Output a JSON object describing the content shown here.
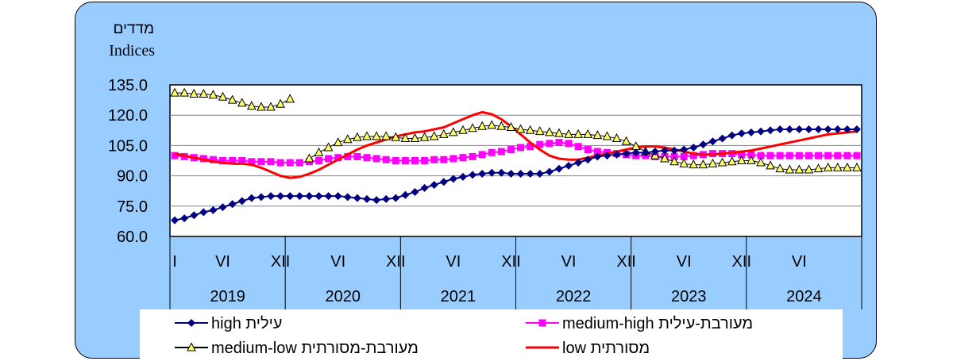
{
  "chart_data": {
    "type": "line",
    "ylabel_he": "מדדים",
    "ylabel_en": "Indices",
    "ylim": [
      60,
      135
    ],
    "yticks": [
      "60.0",
      "75.0",
      "90.0",
      "105.0",
      "120.0",
      "135.0"
    ],
    "ytick_values": [
      60,
      75,
      90,
      105,
      120,
      135
    ],
    "grid": true,
    "month_labels": [
      {
        "index": 0,
        "label": "I"
      },
      {
        "index": 5,
        "label": "VI"
      },
      {
        "index": 11,
        "label": "XII"
      },
      {
        "index": 17,
        "label": "VI"
      },
      {
        "index": 23,
        "label": "XII"
      },
      {
        "index": 29,
        "label": "VI"
      },
      {
        "index": 35,
        "label": "XII"
      },
      {
        "index": 41,
        "label": "VI"
      },
      {
        "index": 47,
        "label": "XII"
      },
      {
        "index": 53,
        "label": "VI"
      },
      {
        "index": 59,
        "label": "XII"
      },
      {
        "index": 65,
        "label": "VI"
      }
    ],
    "year_labels": [
      "2019",
      "2020",
      "2021",
      "2022",
      "2023",
      "2024"
    ],
    "n_months": 72,
    "series": [
      {
        "name": "עילית high",
        "color": "#000080",
        "marker": "diamond",
        "values": [
          68,
          69,
          70.5,
          72,
          73,
          74.5,
          76,
          77.5,
          79,
          79.5,
          80,
          80,
          80,
          80,
          80,
          80,
          80,
          80,
          79.5,
          79,
          78.5,
          78,
          78.5,
          79,
          80.5,
          82,
          84,
          85.5,
          87,
          88.5,
          89.5,
          90.5,
          91,
          91.5,
          91.5,
          91,
          91,
          91,
          91,
          92,
          93.5,
          95,
          96.5,
          98,
          99.5,
          100,
          100.5,
          101,
          101.5,
          101.5,
          102,
          102.5,
          102.5,
          103,
          104,
          105.5,
          107,
          108.5,
          110,
          111,
          111.5,
          112,
          112.5,
          113,
          113,
          113,
          113,
          113,
          113,
          113,
          113,
          113
        ]
      },
      {
        "name": "מעורבת-עילית medium-high",
        "color": "#ff00ff",
        "marker": "square",
        "values": [
          100,
          99.5,
          99,
          98.5,
          98,
          97.5,
          97.5,
          97.5,
          97,
          97,
          97,
          96.5,
          96.5,
          96.5,
          97,
          97.5,
          98.5,
          99,
          99.5,
          99.5,
          99,
          98.5,
          98,
          97.5,
          97.5,
          97.5,
          97.5,
          98,
          98,
          98.5,
          99,
          99.5,
          100.5,
          101.5,
          102,
          103,
          104,
          104.5,
          105.5,
          106,
          106.5,
          106,
          104.5,
          103,
          102,
          101.5,
          101,
          100.5,
          100,
          100,
          99.5,
          99.5,
          99.5,
          99.5,
          100,
          100.5,
          101,
          101,
          101,
          100.5,
          100.5,
          100,
          100,
          100,
          100,
          100,
          100,
          100,
          100,
          100,
          100,
          100
        ]
      },
      {
        "name": "מעורבת-מסורתית medium-low",
        "color": "#000000",
        "marker": "triangle",
        "values": [
          131,
          131,
          130.5,
          130.5,
          130,
          129,
          127.5,
          126,
          124.5,
          124,
          124,
          125.5,
          128,
          null,
          98.5,
          101.5,
          104,
          106.5,
          108,
          109,
          109.5,
          109.5,
          109.5,
          109,
          108.5,
          108.5,
          109,
          109.5,
          110.5,
          111.5,
          112.5,
          113.5,
          114.5,
          115,
          114.5,
          114,
          113,
          112.5,
          112,
          111.5,
          111,
          110.5,
          110.5,
          110.5,
          110,
          109.5,
          108.5,
          107,
          104.5,
          102,
          100,
          98.5,
          97,
          96,
          95.5,
          95.5,
          96,
          96.5,
          97,
          97.5,
          97.5,
          96.5,
          95,
          93.5,
          93,
          93,
          93,
          93.5,
          94,
          94,
          94,
          94
        ]
      },
      {
        "name": "מסורתית low",
        "color": "#ff0000",
        "marker": "none",
        "values": [
          101,
          100,
          99,
          98,
          97,
          96.5,
          96,
          96,
          95.5,
          94,
          92,
          90,
          89,
          89.5,
          91,
          93,
          95.5,
          98,
          100.5,
          103,
          105,
          106.5,
          108,
          109.5,
          110.5,
          111.5,
          112,
          113,
          114,
          116,
          118,
          120,
          121.5,
          120.5,
          118,
          114.5,
          110.5,
          106.5,
          103,
          100,
          98.5,
          98,
          98,
          99,
          100,
          101,
          102,
          103,
          104,
          104.5,
          104.5,
          104,
          103,
          102,
          101,
          100.5,
          100.5,
          101,
          101.5,
          102,
          102.5,
          103.5,
          104.5,
          105.5,
          106.5,
          107.5,
          108.5,
          109.5,
          110.5,
          111,
          111.5,
          112
        ]
      }
    ]
  },
  "legend": {
    "items": [
      {
        "label": "עילית high",
        "marker": "diamond",
        "color": "#000080"
      },
      {
        "label": "מעורבת-עילית medium-high",
        "marker": "square",
        "color": "#ff00ff"
      },
      {
        "label": "מעורבת-מסורתית medium-low",
        "marker": "triangle",
        "color": "#000000"
      },
      {
        "label": "מסורתית low",
        "marker": "none",
        "color": "#ff0000"
      }
    ]
  }
}
